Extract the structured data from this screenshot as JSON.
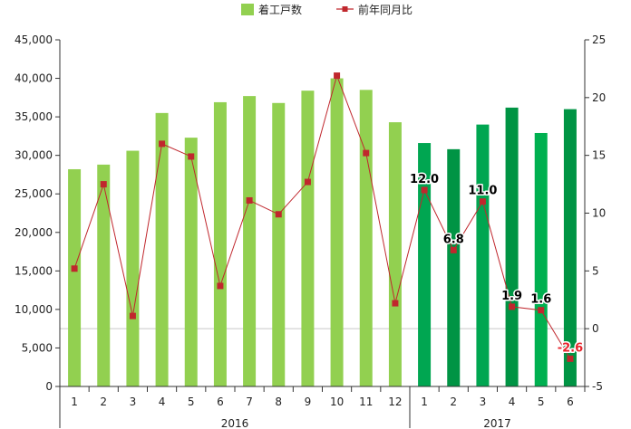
{
  "chart_data": {
    "type": "bar",
    "categories": [
      "1",
      "2",
      "3",
      "4",
      "5",
      "6",
      "7",
      "8",
      "9",
      "10",
      "11",
      "12",
      "1",
      "2",
      "3",
      "4",
      "5",
      "6"
    ],
    "groups": [
      {
        "label": "2016",
        "count": 12
      },
      {
        "label": "2017",
        "count": 6
      }
    ],
    "series": [
      {
        "name": "着工戸数",
        "type": "bar",
        "axis": "left",
        "values": [
          28200,
          28800,
          30600,
          35500,
          32300,
          36900,
          37700,
          36800,
          38400,
          40000,
          38500,
          34300,
          31600,
          30800,
          34000,
          36200,
          32900,
          36000
        ],
        "colors": [
          "#92d050",
          "#92d050",
          "#92d050",
          "#92d050",
          "#92d050",
          "#92d050",
          "#92d050",
          "#92d050",
          "#92d050",
          "#92d050",
          "#92d050",
          "#92d050",
          "#00a651",
          "#009444",
          "#00a651",
          "#009444",
          "#00b050",
          "#009444"
        ]
      },
      {
        "name": "前年同月比",
        "type": "line",
        "axis": "right",
        "values": [
          5.2,
          12.5,
          1.1,
          16.0,
          14.9,
          3.7,
          11.1,
          9.9,
          12.7,
          21.9,
          15.2,
          2.2,
          12.0,
          6.8,
          11.0,
          1.9,
          1.6,
          -2.6
        ],
        "color": "#c0272d"
      }
    ],
    "data_labels": [
      {
        "index": 12,
        "text": "12.0"
      },
      {
        "index": 13,
        "text": "6.8"
      },
      {
        "index": 14,
        "text": "11.0"
      },
      {
        "index": 15,
        "text": "1.9"
      },
      {
        "index": 16,
        "text": "1.6"
      },
      {
        "index": 17,
        "text": "-2.6",
        "color": "#e8262e"
      }
    ],
    "y_left": {
      "min": 0,
      "max": 45000,
      "ticks": [
        "0",
        "5,000",
        "10,000",
        "15,000",
        "20,000",
        "25,000",
        "30,000",
        "35,000",
        "40,000",
        "45,000"
      ]
    },
    "y_right": {
      "min": -5,
      "max": 25,
      "ticks": [
        "-5",
        "0",
        "5",
        "10",
        "15",
        "20",
        "25"
      ]
    },
    "grid": false,
    "zero_line_right": true,
    "legend_position": "top-center"
  }
}
